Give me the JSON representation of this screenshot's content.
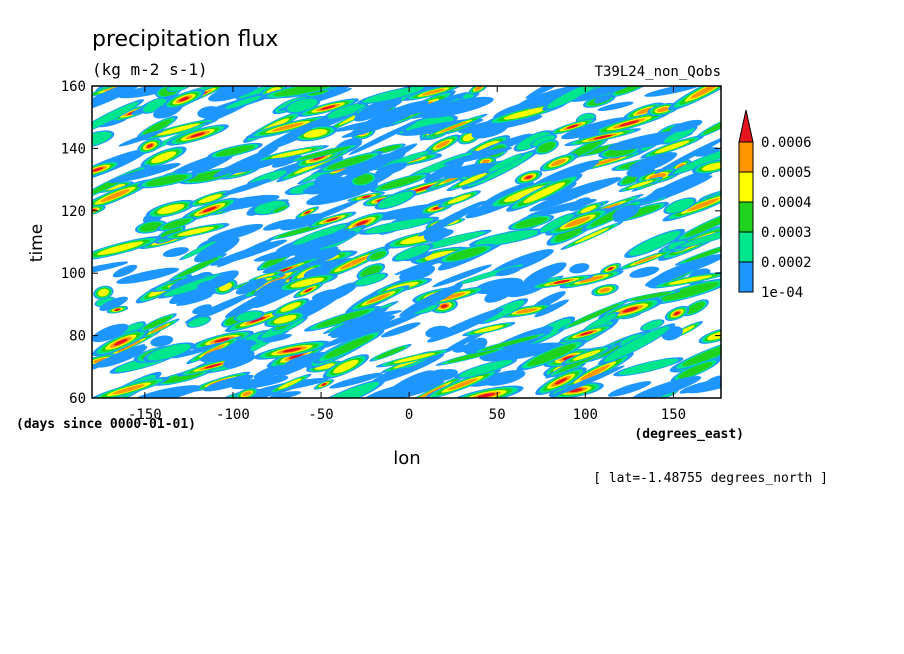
{
  "chart_data": {
    "type": "heatmap",
    "title": "precipitation flux",
    "units": "(kg m-2 s-1)",
    "dataset": "T39L24_non_Qobs",
    "xlabel": "lon",
    "ylabel": "time",
    "xunits": "(degrees_east)",
    "yunits": "(days since 0000-01-01)",
    "slice_note": "[ lat=-1.48755 degrees_north ]",
    "xlim": [
      -180,
      177
    ],
    "ylim": [
      60,
      160
    ],
    "xticks": [
      -150,
      -100,
      -50,
      0,
      50,
      100,
      150
    ],
    "yticks": [
      60,
      80,
      100,
      120,
      140,
      160
    ],
    "xtick_labels": [
      "-150",
      "-100",
      "-50",
      "0",
      "50",
      "100",
      "150"
    ],
    "ytick_labels": [
      "60",
      "80",
      "100",
      "120",
      "140",
      "160"
    ],
    "levels": [
      0.0001,
      0.0002,
      0.0003,
      0.0004,
      0.0005,
      0.0006
    ],
    "level_labels": [
      "1e-04",
      "0.0002",
      "0.0003",
      "0.0004",
      "0.0005",
      "0.0006"
    ],
    "colors": [
      "#1e96ff",
      "#00e68c",
      "#1ed21e",
      "#ffff00",
      "#ff9600",
      "#e6141e"
    ],
    "pattern": "eastward-tilted streaks of precipitation throughout lon -180..177, time 60..160"
  }
}
